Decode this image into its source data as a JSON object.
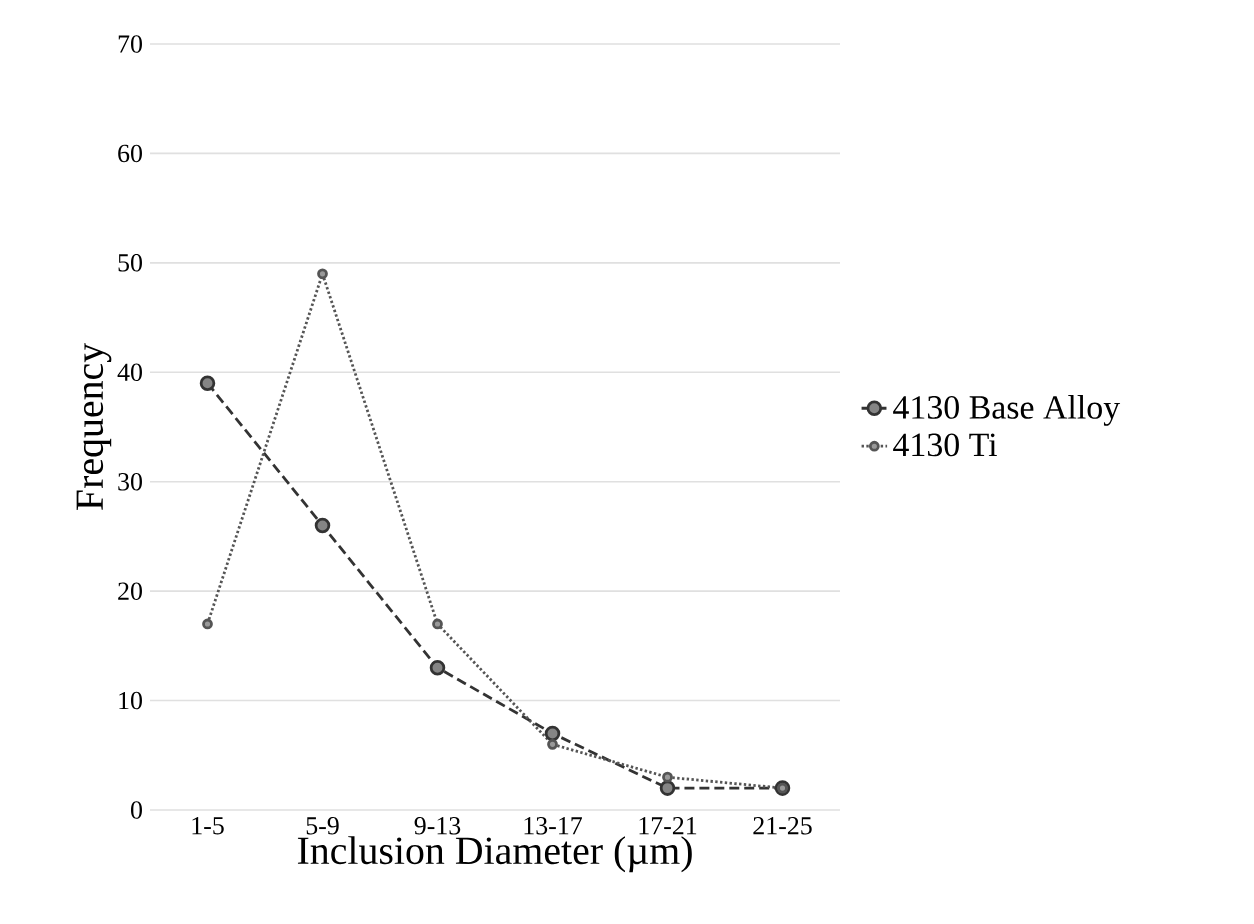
{
  "chart_data": {
    "type": "line",
    "xlabel": "Inclusion Diameter (µm)",
    "ylabel": "Frequency",
    "categories": [
      "1-5",
      "5-9",
      "9-13",
      "13-17",
      "17-21",
      "21-25"
    ],
    "series": [
      {
        "name": "4130 Base Alloy",
        "color": "#333333",
        "values": [
          39,
          26,
          13,
          7,
          2,
          2
        ],
        "line_style": "dashed"
      },
      {
        "name": "4130 Ti",
        "color": "#555555",
        "values": [
          17,
          49,
          17,
          6,
          3,
          2
        ],
        "line_style": "dotted"
      }
    ],
    "ylim": [
      0,
      70
    ],
    "yticks": [
      0,
      10,
      20,
      30,
      40,
      50,
      60,
      70
    ],
    "grid": "y",
    "legend": "right",
    "marker": "circle"
  }
}
